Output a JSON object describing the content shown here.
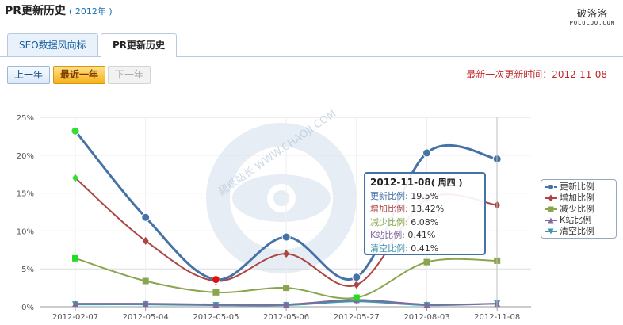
{
  "header": {
    "title": "PR更新历史",
    "year_tag": "( 2012年 )"
  },
  "watermark": {
    "cn": "破洛洛",
    "en": "POLULUO.COM"
  },
  "tabs": [
    {
      "label": "SEO数据风向标",
      "active": false
    },
    {
      "label": "PR更新历史",
      "active": true
    }
  ],
  "controls": {
    "prev_label": "上一年",
    "recent_label": "最近一年",
    "next_label": "下一年"
  },
  "last_update_text": "最新一次更新时间：2012-11-08",
  "chart_data": {
    "type": "line",
    "categories": [
      "2012-02-07",
      "2012-05-04",
      "2012-05-05",
      "2012-05-06",
      "2012-05-27",
      "2012-08-03",
      "2012-11-08"
    ],
    "y_ticks": [
      "0%",
      "5%",
      "10%",
      "15%",
      "20%",
      "25%"
    ],
    "ylim": [
      0,
      25
    ],
    "grid": true,
    "legend_position": "right",
    "series": [
      {
        "name": "更新比例",
        "color": "#4572a7",
        "marker": "circle",
        "values": [
          23.2,
          11.8,
          3.6,
          9.2,
          3.9,
          20.3,
          19.5
        ]
      },
      {
        "name": "增加比例",
        "color": "#aa4643",
        "marker": "diamond",
        "values": [
          17.0,
          8.7,
          3.4,
          7.0,
          2.9,
          14.2,
          13.42
        ]
      },
      {
        "name": "减少比例",
        "color": "#89a54e",
        "marker": "square",
        "values": [
          6.4,
          3.4,
          1.9,
          2.5,
          1.2,
          5.9,
          6.08
        ]
      },
      {
        "name": "K站比例",
        "color": "#80699b",
        "marker": "triangle",
        "values": [
          0.4,
          0.4,
          0.3,
          0.3,
          0.9,
          0.3,
          0.41
        ]
      },
      {
        "name": "清空比例",
        "color": "#3d96ae",
        "marker": "triangle-down",
        "values": [
          0.3,
          0.3,
          0.2,
          0.2,
          0.7,
          0.2,
          0.41
        ]
      }
    ],
    "tooltip": {
      "date": "2012-11-08",
      "weekday": "( 周四 )",
      "rows": [
        {
          "label": "更新比例:",
          "value": "19.5%"
        },
        {
          "label": "增加比例:",
          "value": "13.42%"
        },
        {
          "label": "减少比例:",
          "value": "6.08%"
        },
        {
          "label": "K站比例:",
          "value": "0.41%"
        },
        {
          "label": "清空比例:",
          "value": "0.41%"
        }
      ]
    },
    "bg_watermark": "超级站长 WWW.CHAOJI.COM"
  }
}
